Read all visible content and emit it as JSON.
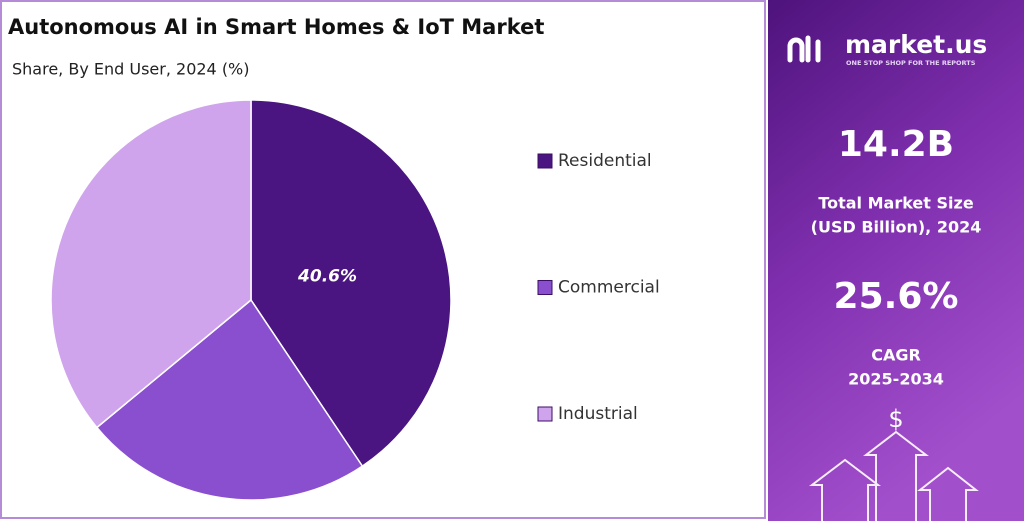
{
  "chart_data": {
    "type": "pie",
    "title": "Autonomous AI in Smart Homes & IoT Market",
    "subtitle": "Share, By End User, 2024 (%)",
    "categories": [
      "Residential",
      "Commercial",
      "Industrial"
    ],
    "values": [
      40.6,
      23.4,
      36
    ],
    "value_labels": [
      "40.6%",
      null,
      null
    ],
    "colors": [
      "#4a1580",
      "#8a4fcf",
      "#cfa4ec"
    ],
    "legend": "right"
  },
  "panel": {
    "brand": "market.us",
    "tagline": "ONE STOP SHOP FOR THE REPORTS",
    "market_size": "14.2B",
    "market_size_label": [
      "Total Market Size",
      "(USD Billion), 2024"
    ],
    "cagr": "25.6%",
    "cagr_label": [
      "CAGR",
      "2025-2034"
    ],
    "icon": "$"
  }
}
